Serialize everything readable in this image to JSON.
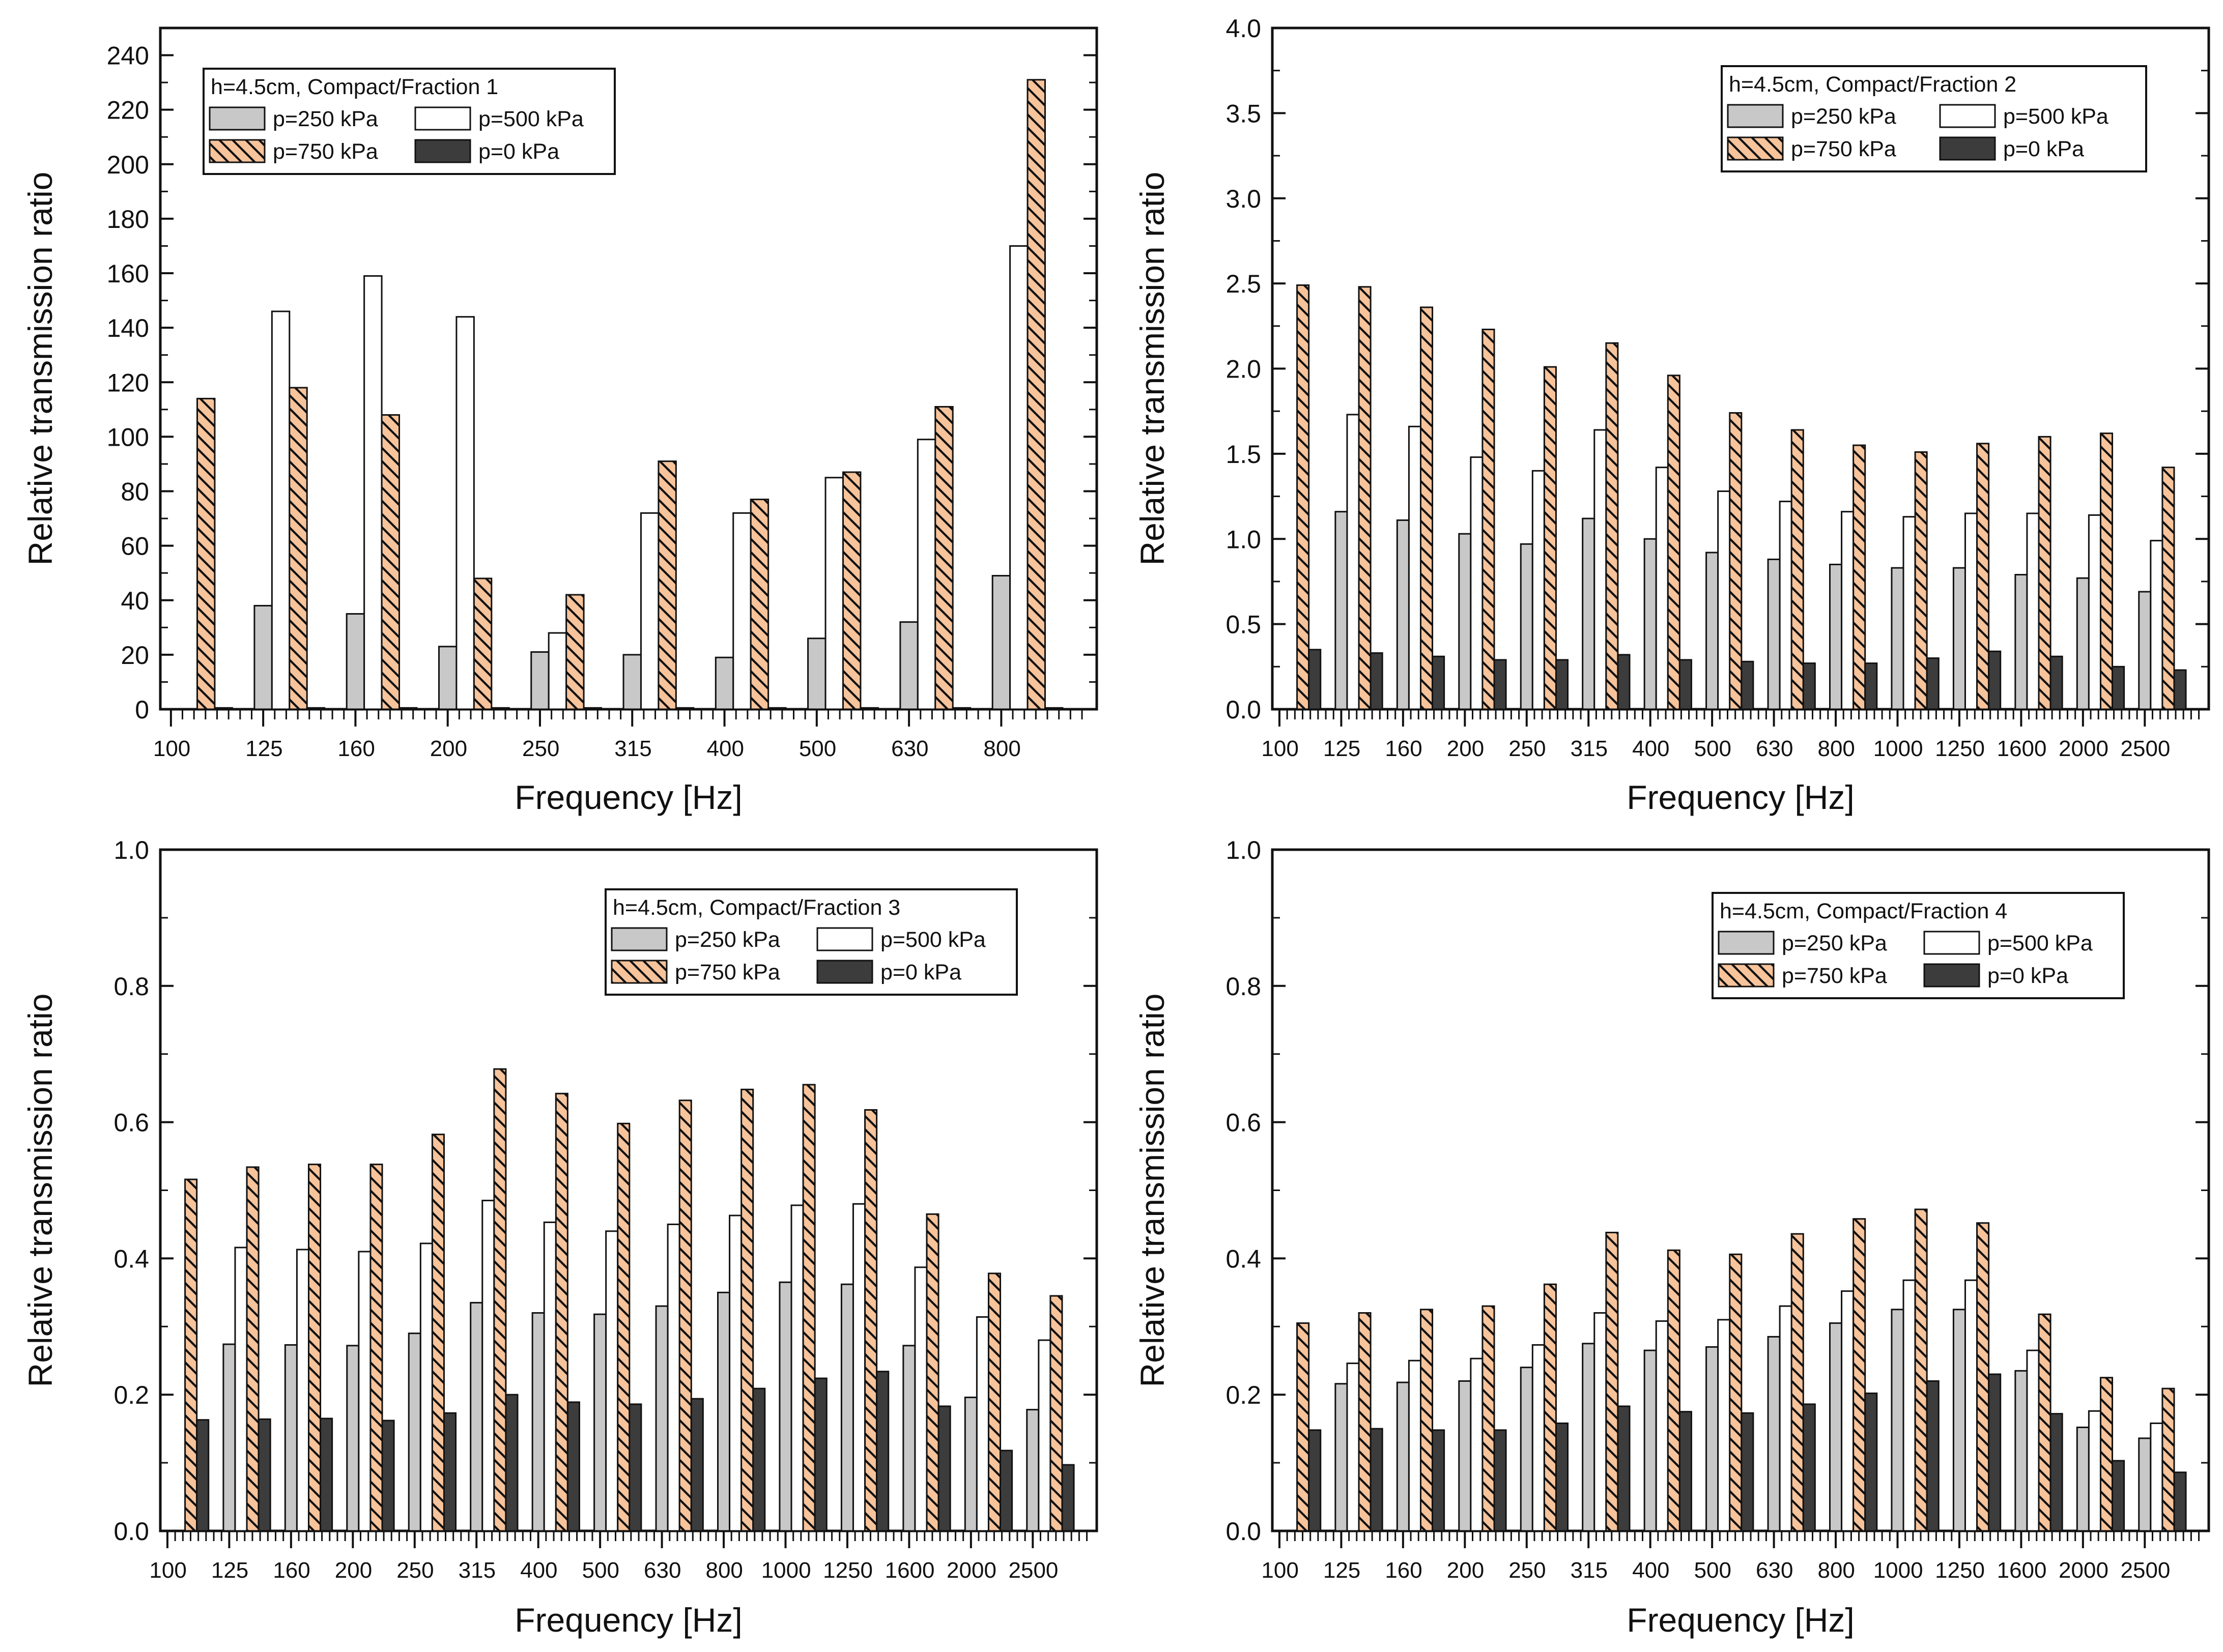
{
  "colors": {
    "p250": "#c8c8c8",
    "p500": "#ffffff",
    "p750": "#f6c39b",
    "p0": "#3c3c3c",
    "outline": "#111111"
  },
  "chart_data": [
    {
      "type": "bar",
      "title": "h=4.5cm, Compact/Fraction 1",
      "xlabel": "Frequency [Hz]",
      "ylabel": "Relative transmission ratio",
      "ylim": [
        0,
        250
      ],
      "yticks": [
        0,
        20,
        40,
        60,
        80,
        100,
        120,
        140,
        160,
        180,
        200,
        220,
        240
      ],
      "ytick_labels": [
        "0",
        "20",
        "40",
        "60",
        "80",
        "100",
        "120",
        "140",
        "160",
        "180",
        "200",
        "220",
        "240"
      ],
      "legend_position": "top-left",
      "categories": [
        "100",
        "125",
        "160",
        "200",
        "250",
        "315",
        "400",
        "500",
        "630",
        "800"
      ],
      "series": [
        {
          "name": "p=250 kPa",
          "color_key": "p250",
          "hatch": false,
          "values": [
            0,
            38,
            35,
            23,
            21,
            20,
            19,
            26,
            32,
            49
          ]
        },
        {
          "name": "p=500 kPa",
          "color_key": "p500",
          "hatch": false,
          "values": [
            0,
            146,
            159,
            144,
            28,
            72,
            72,
            85,
            99,
            170
          ]
        },
        {
          "name": "p=750 kPa",
          "color_key": "p750",
          "hatch": true,
          "values": [
            114,
            118,
            108,
            48,
            42,
            91,
            77,
            87,
            111,
            231
          ]
        },
        {
          "name": "p=0 kPa",
          "color_key": "p0",
          "hatch": false,
          "values": [
            0.5,
            0.5,
            0.5,
            0.5,
            0.5,
            0.5,
            0.5,
            0.5,
            0.5,
            0.5
          ]
        }
      ]
    },
    {
      "type": "bar",
      "title": "h=4.5cm, Compact/Fraction 2",
      "xlabel": "Frequency [Hz]",
      "ylabel": "Relative transmission ratio",
      "ylim": [
        0,
        4.0
      ],
      "yticks": [
        0,
        0.5,
        1.0,
        1.5,
        2.0,
        2.5,
        3.0,
        3.5,
        4.0
      ],
      "ytick_labels": [
        "0.0",
        "0.5",
        "1.0",
        "1.5",
        "2.0",
        "2.5",
        "3.0",
        "3.5",
        "4.0"
      ],
      "legend_position": "top-right",
      "categories": [
        "100",
        "125",
        "160",
        "200",
        "250",
        "315",
        "400",
        "500",
        "630",
        "800",
        "1000",
        "1250",
        "1600",
        "2000",
        "2500"
      ],
      "series": [
        {
          "name": "p=250 kPa",
          "color_key": "p250",
          "hatch": false,
          "values": [
            0,
            1.16,
            1.11,
            1.03,
            0.97,
            1.12,
            1.0,
            0.92,
            0.88,
            0.85,
            0.83,
            0.83,
            0.79,
            0.77,
            0.69
          ]
        },
        {
          "name": "p=500 kPa",
          "color_key": "p500",
          "hatch": false,
          "values": [
            0,
            1.73,
            1.66,
            1.48,
            1.4,
            1.64,
            1.42,
            1.28,
            1.22,
            1.16,
            1.13,
            1.15,
            1.15,
            1.14,
            0.99
          ]
        },
        {
          "name": "p=750 kPa",
          "color_key": "p750",
          "hatch": true,
          "values": [
            2.49,
            2.48,
            2.36,
            2.23,
            2.01,
            2.15,
            1.96,
            1.74,
            1.64,
            1.55,
            1.51,
            1.56,
            1.6,
            1.62,
            1.42
          ]
        },
        {
          "name": "p=0 kPa",
          "color_key": "p0",
          "hatch": false,
          "values": [
            0.35,
            0.33,
            0.31,
            0.29,
            0.29,
            0.32,
            0.29,
            0.28,
            0.27,
            0.27,
            0.3,
            0.34,
            0.31,
            0.25,
            0.23
          ]
        }
      ]
    },
    {
      "type": "bar",
      "title": "h=4.5cm, Compact/Fraction 3",
      "xlabel": "Frequency [Hz]",
      "ylabel": "Relative transmission ratio",
      "ylim": [
        0,
        1.0
      ],
      "yticks": [
        0,
        0.2,
        0.4,
        0.6,
        0.8,
        1.0
      ],
      "ytick_labels": [
        "0.0",
        "0.2",
        "0.4",
        "0.6",
        "0.8",
        "1.0"
      ],
      "legend_position": "top-right",
      "categories": [
        "100",
        "125",
        "160",
        "200",
        "250",
        "315",
        "400",
        "500",
        "630",
        "800",
        "1000",
        "1250",
        "1600",
        "2000",
        "2500"
      ],
      "series": [
        {
          "name": "p=250 kPa",
          "color_key": "p250",
          "hatch": false,
          "values": [
            0,
            0.274,
            0.273,
            0.272,
            0.29,
            0.335,
            0.32,
            0.318,
            0.33,
            0.35,
            0.365,
            0.362,
            0.272,
            0.196,
            0.178
          ]
        },
        {
          "name": "p=500 kPa",
          "color_key": "p500",
          "hatch": false,
          "values": [
            0,
            0.416,
            0.413,
            0.41,
            0.422,
            0.485,
            0.453,
            0.44,
            0.45,
            0.463,
            0.478,
            0.48,
            0.387,
            0.314,
            0.28
          ]
        },
        {
          "name": "p=750 kPa",
          "color_key": "p750",
          "hatch": true,
          "values": [
            0.516,
            0.534,
            0.538,
            0.538,
            0.582,
            0.678,
            0.642,
            0.598,
            0.632,
            0.648,
            0.655,
            0.618,
            0.465,
            0.378,
            0.345
          ]
        },
        {
          "name": "p=0 kPa",
          "color_key": "p0",
          "hatch": false,
          "values": [
            0.163,
            0.164,
            0.165,
            0.162,
            0.173,
            0.2,
            0.189,
            0.186,
            0.194,
            0.209,
            0.224,
            0.234,
            0.183,
            0.118,
            0.097
          ]
        }
      ]
    },
    {
      "type": "bar",
      "title": "h=4.5cm, Compact/Fraction 4",
      "xlabel": "Frequency [Hz]",
      "ylabel": "Relative transmission ratio",
      "ylim": [
        0,
        1.0
      ],
      "yticks": [
        0,
        0.2,
        0.4,
        0.6,
        0.8,
        1.0
      ],
      "ytick_labels": [
        "0.0",
        "0.2",
        "0.4",
        "0.6",
        "0.8",
        "1.0"
      ],
      "legend_position": "top-right",
      "categories": [
        "100",
        "125",
        "160",
        "200",
        "250",
        "315",
        "400",
        "500",
        "630",
        "800",
        "1000",
        "1250",
        "1600",
        "2000",
        "2500"
      ],
      "series": [
        {
          "name": "p=250 kPa",
          "color_key": "p250",
          "hatch": false,
          "values": [
            0,
            0.216,
            0.218,
            0.22,
            0.24,
            0.275,
            0.265,
            0.27,
            0.285,
            0.305,
            0.325,
            0.325,
            0.235,
            0.152,
            0.136
          ]
        },
        {
          "name": "p=500 kPa",
          "color_key": "p500",
          "hatch": false,
          "values": [
            0,
            0.246,
            0.25,
            0.253,
            0.273,
            0.32,
            0.308,
            0.31,
            0.33,
            0.352,
            0.368,
            0.368,
            0.265,
            0.176,
            0.158
          ]
        },
        {
          "name": "p=750 kPa",
          "color_key": "p750",
          "hatch": true,
          "values": [
            0.305,
            0.32,
            0.325,
            0.33,
            0.362,
            0.438,
            0.412,
            0.406,
            0.436,
            0.458,
            0.472,
            0.452,
            0.318,
            0.225,
            0.209
          ]
        },
        {
          "name": "p=0 kPa",
          "color_key": "p0",
          "hatch": false,
          "values": [
            0.148,
            0.15,
            0.148,
            0.148,
            0.158,
            0.183,
            0.175,
            0.173,
            0.186,
            0.202,
            0.22,
            0.23,
            0.172,
            0.103,
            0.086
          ]
        }
      ]
    }
  ]
}
